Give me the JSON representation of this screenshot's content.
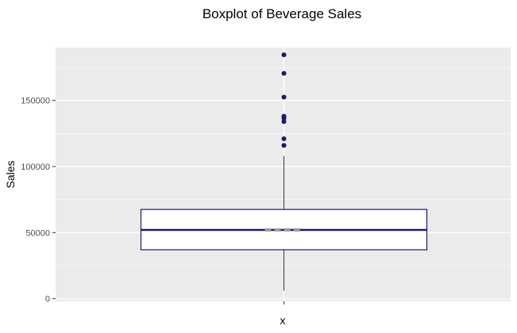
{
  "chart_data": {
    "type": "boxplot",
    "title": "Boxplot of Beverage Sales",
    "xlabel": "x",
    "ylabel": "Sales",
    "ylim": [
      -2000,
      190000
    ],
    "yticks": [
      0,
      50000,
      100000,
      150000
    ],
    "ytick_labels": [
      "0",
      "50000",
      "100000",
      "150000"
    ],
    "grid": true,
    "box": {
      "whisker_low": 6000,
      "q1": 37000,
      "median": 52000,
      "q3": 67500,
      "whisker_high": 108000,
      "outliers": [
        116000,
        121000,
        134000,
        136500,
        138000,
        152500,
        170500,
        184500
      ]
    },
    "colors": {
      "panel": "#ebebeb",
      "grid": "#ffffff",
      "box_outline": "#1a1a6e",
      "outlier": "#1a1a6e",
      "whisker": "#333333",
      "median_marker": "#9e9e9e"
    }
  }
}
